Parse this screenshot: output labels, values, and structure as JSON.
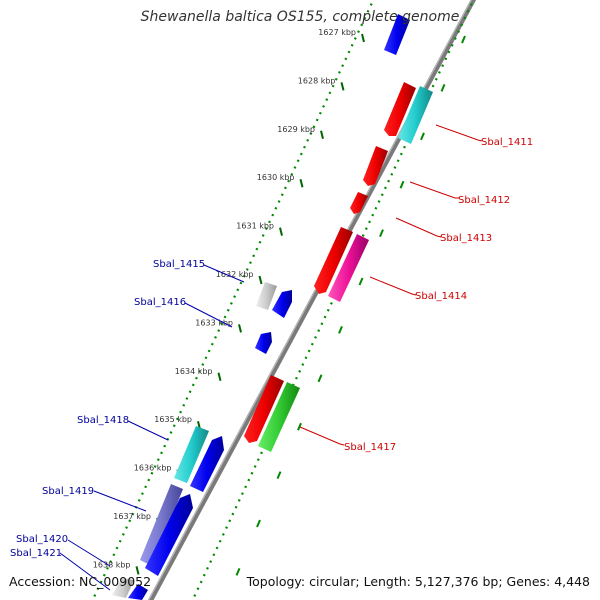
{
  "title": "Shewanella baltica OS155, complete genome",
  "accession": "Accession: NC_009052",
  "summary": "Topology: circular; Length: 5,127,376 bp; Genes: 4,448",
  "colors": {
    "backbone": "#808080",
    "forward_label": "#cc0000",
    "reverse_label": "#000099",
    "ticks": "#008000"
  },
  "ticks": [
    "1627 kbp",
    "1628 kbp",
    "1629 kbp",
    "1630 kbp",
    "1631 kbp",
    "1632 kbp",
    "1633 kbp",
    "1634 kbp",
    "1635 kbp",
    "1636 kbp",
    "1637 kbp",
    "1638 kbp"
  ],
  "forward_labels": [
    "Sbal_1411",
    "Sbal_1412",
    "Sbal_1413",
    "Sbal_1414",
    "Sbal_1417"
  ],
  "reverse_labels": [
    "Sbal_1415",
    "Sbal_1416",
    "Sbal_1418",
    "Sbal_1419",
    "Sbal_1420",
    "Sbal_1421"
  ]
}
